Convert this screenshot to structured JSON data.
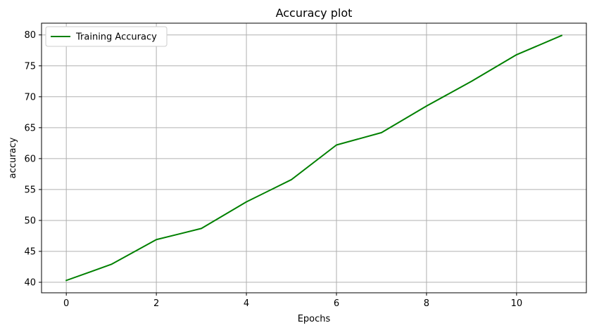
{
  "chart_data": {
    "type": "line",
    "title": "Accuracy plot",
    "xlabel": "Epochs",
    "ylabel": "accuracy",
    "x": [
      0,
      1,
      2,
      3,
      4,
      5,
      6,
      7,
      8,
      9,
      10,
      11
    ],
    "series": [
      {
        "name": "Training Accuracy",
        "color": "#008000",
        "values": [
          40.3,
          42.9,
          46.9,
          48.7,
          53.0,
          56.6,
          62.2,
          64.2,
          68.5,
          72.5,
          76.8,
          79.9
        ]
      }
    ],
    "xlim": [
      -0.55,
      11.55
    ],
    "ylim": [
      38.3,
      81.9
    ],
    "xticks": [
      0,
      2,
      4,
      6,
      8,
      10
    ],
    "yticks": [
      40,
      45,
      50,
      55,
      60,
      65,
      70,
      75,
      80
    ],
    "grid": true,
    "legend_position": "top-left"
  }
}
